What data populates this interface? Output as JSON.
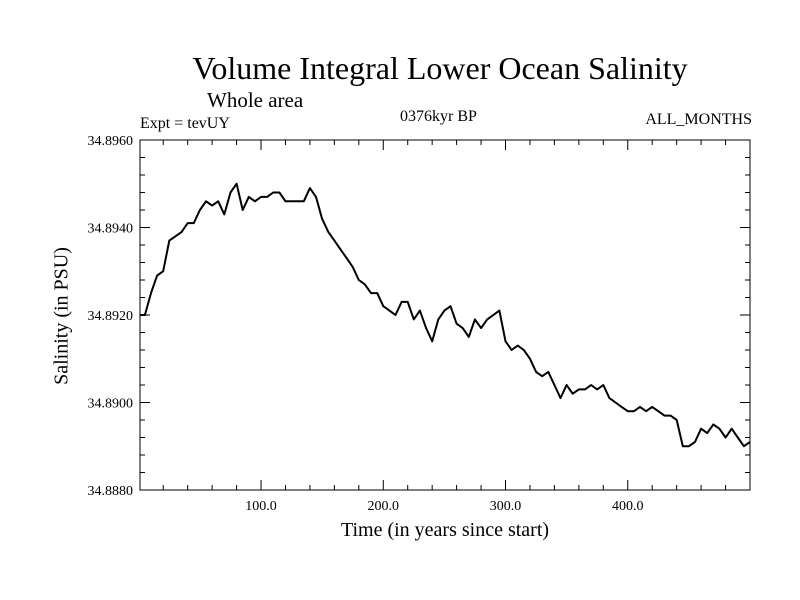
{
  "chart_data": {
    "type": "line",
    "title": "Volume Integral Lower Ocean Salinity",
    "subtitle": "Whole area",
    "annotations": {
      "experiment": "Expt = tevUY",
      "period": "0376kyr BP",
      "months": "ALL_MONTHS"
    },
    "xlabel": "Time (in years since start)",
    "ylabel": "Salinity (in PSU)",
    "xlim": [
      1,
      500
    ],
    "ylim": [
      34.888,
      34.896
    ],
    "xticks": [
      100,
      200,
      300,
      400
    ],
    "xtick_labels": [
      "100.0",
      "200.0",
      "300.0",
      "400.0"
    ],
    "yticks": [
      34.888,
      34.89,
      34.892,
      34.894,
      34.896
    ],
    "ytick_labels": [
      "34.8880",
      "34.8900",
      "34.8920",
      "34.8940",
      "34.8960"
    ],
    "grid": false,
    "series": [
      {
        "color": "#000000",
        "x": [
          1,
          5,
          10,
          15,
          20,
          25,
          30,
          35,
          40,
          45,
          50,
          55,
          60,
          65,
          70,
          75,
          80,
          85,
          90,
          95,
          100,
          105,
          110,
          115,
          120,
          125,
          130,
          135,
          140,
          145,
          150,
          155,
          160,
          165,
          170,
          175,
          180,
          185,
          190,
          195,
          200,
          205,
          210,
          215,
          220,
          225,
          230,
          235,
          240,
          245,
          250,
          255,
          260,
          265,
          270,
          275,
          280,
          285,
          290,
          295,
          300,
          305,
          310,
          315,
          320,
          325,
          330,
          335,
          340,
          345,
          350,
          355,
          360,
          365,
          370,
          375,
          380,
          385,
          390,
          395,
          400,
          405,
          410,
          415,
          420,
          425,
          430,
          435,
          440,
          445,
          450,
          455,
          460,
          465,
          470,
          475,
          480,
          485,
          490,
          495,
          500
        ],
        "y": [
          34.892,
          34.892,
          34.8925,
          34.8929,
          34.893,
          34.8937,
          34.8938,
          34.8939,
          34.8941,
          34.8941,
          34.8944,
          34.8946,
          34.8945,
          34.8946,
          34.8943,
          34.8948,
          34.895,
          34.8944,
          34.8947,
          34.8946,
          34.8947,
          34.8947,
          34.8948,
          34.8948,
          34.8946,
          34.8946,
          34.8946,
          34.8946,
          34.8949,
          34.8947,
          34.8942,
          34.8939,
          34.8937,
          34.8935,
          34.8933,
          34.8931,
          34.8928,
          34.8927,
          34.8925,
          34.8925,
          34.8922,
          34.8921,
          34.892,
          34.8923,
          34.8923,
          34.8919,
          34.8921,
          34.8917,
          34.8914,
          34.8919,
          34.8921,
          34.8922,
          34.8918,
          34.8917,
          34.8915,
          34.8919,
          34.8917,
          34.8919,
          34.892,
          34.8921,
          34.8914,
          34.8912,
          34.8913,
          34.8912,
          34.891,
          34.8907,
          34.8906,
          34.8907,
          34.8904,
          34.8901,
          34.8904,
          34.8902,
          34.8903,
          34.8903,
          34.8904,
          34.8903,
          34.8904,
          34.8901,
          34.89,
          34.8899,
          34.8898,
          34.8898,
          34.8899,
          34.8898,
          34.8899,
          34.8898,
          34.8897,
          34.8897,
          34.8896,
          34.889,
          34.889,
          34.8891,
          34.8894,
          34.8893,
          34.8895,
          34.8894,
          34.8892,
          34.8894,
          34.8892,
          34.889,
          34.8891
        ]
      }
    ]
  }
}
